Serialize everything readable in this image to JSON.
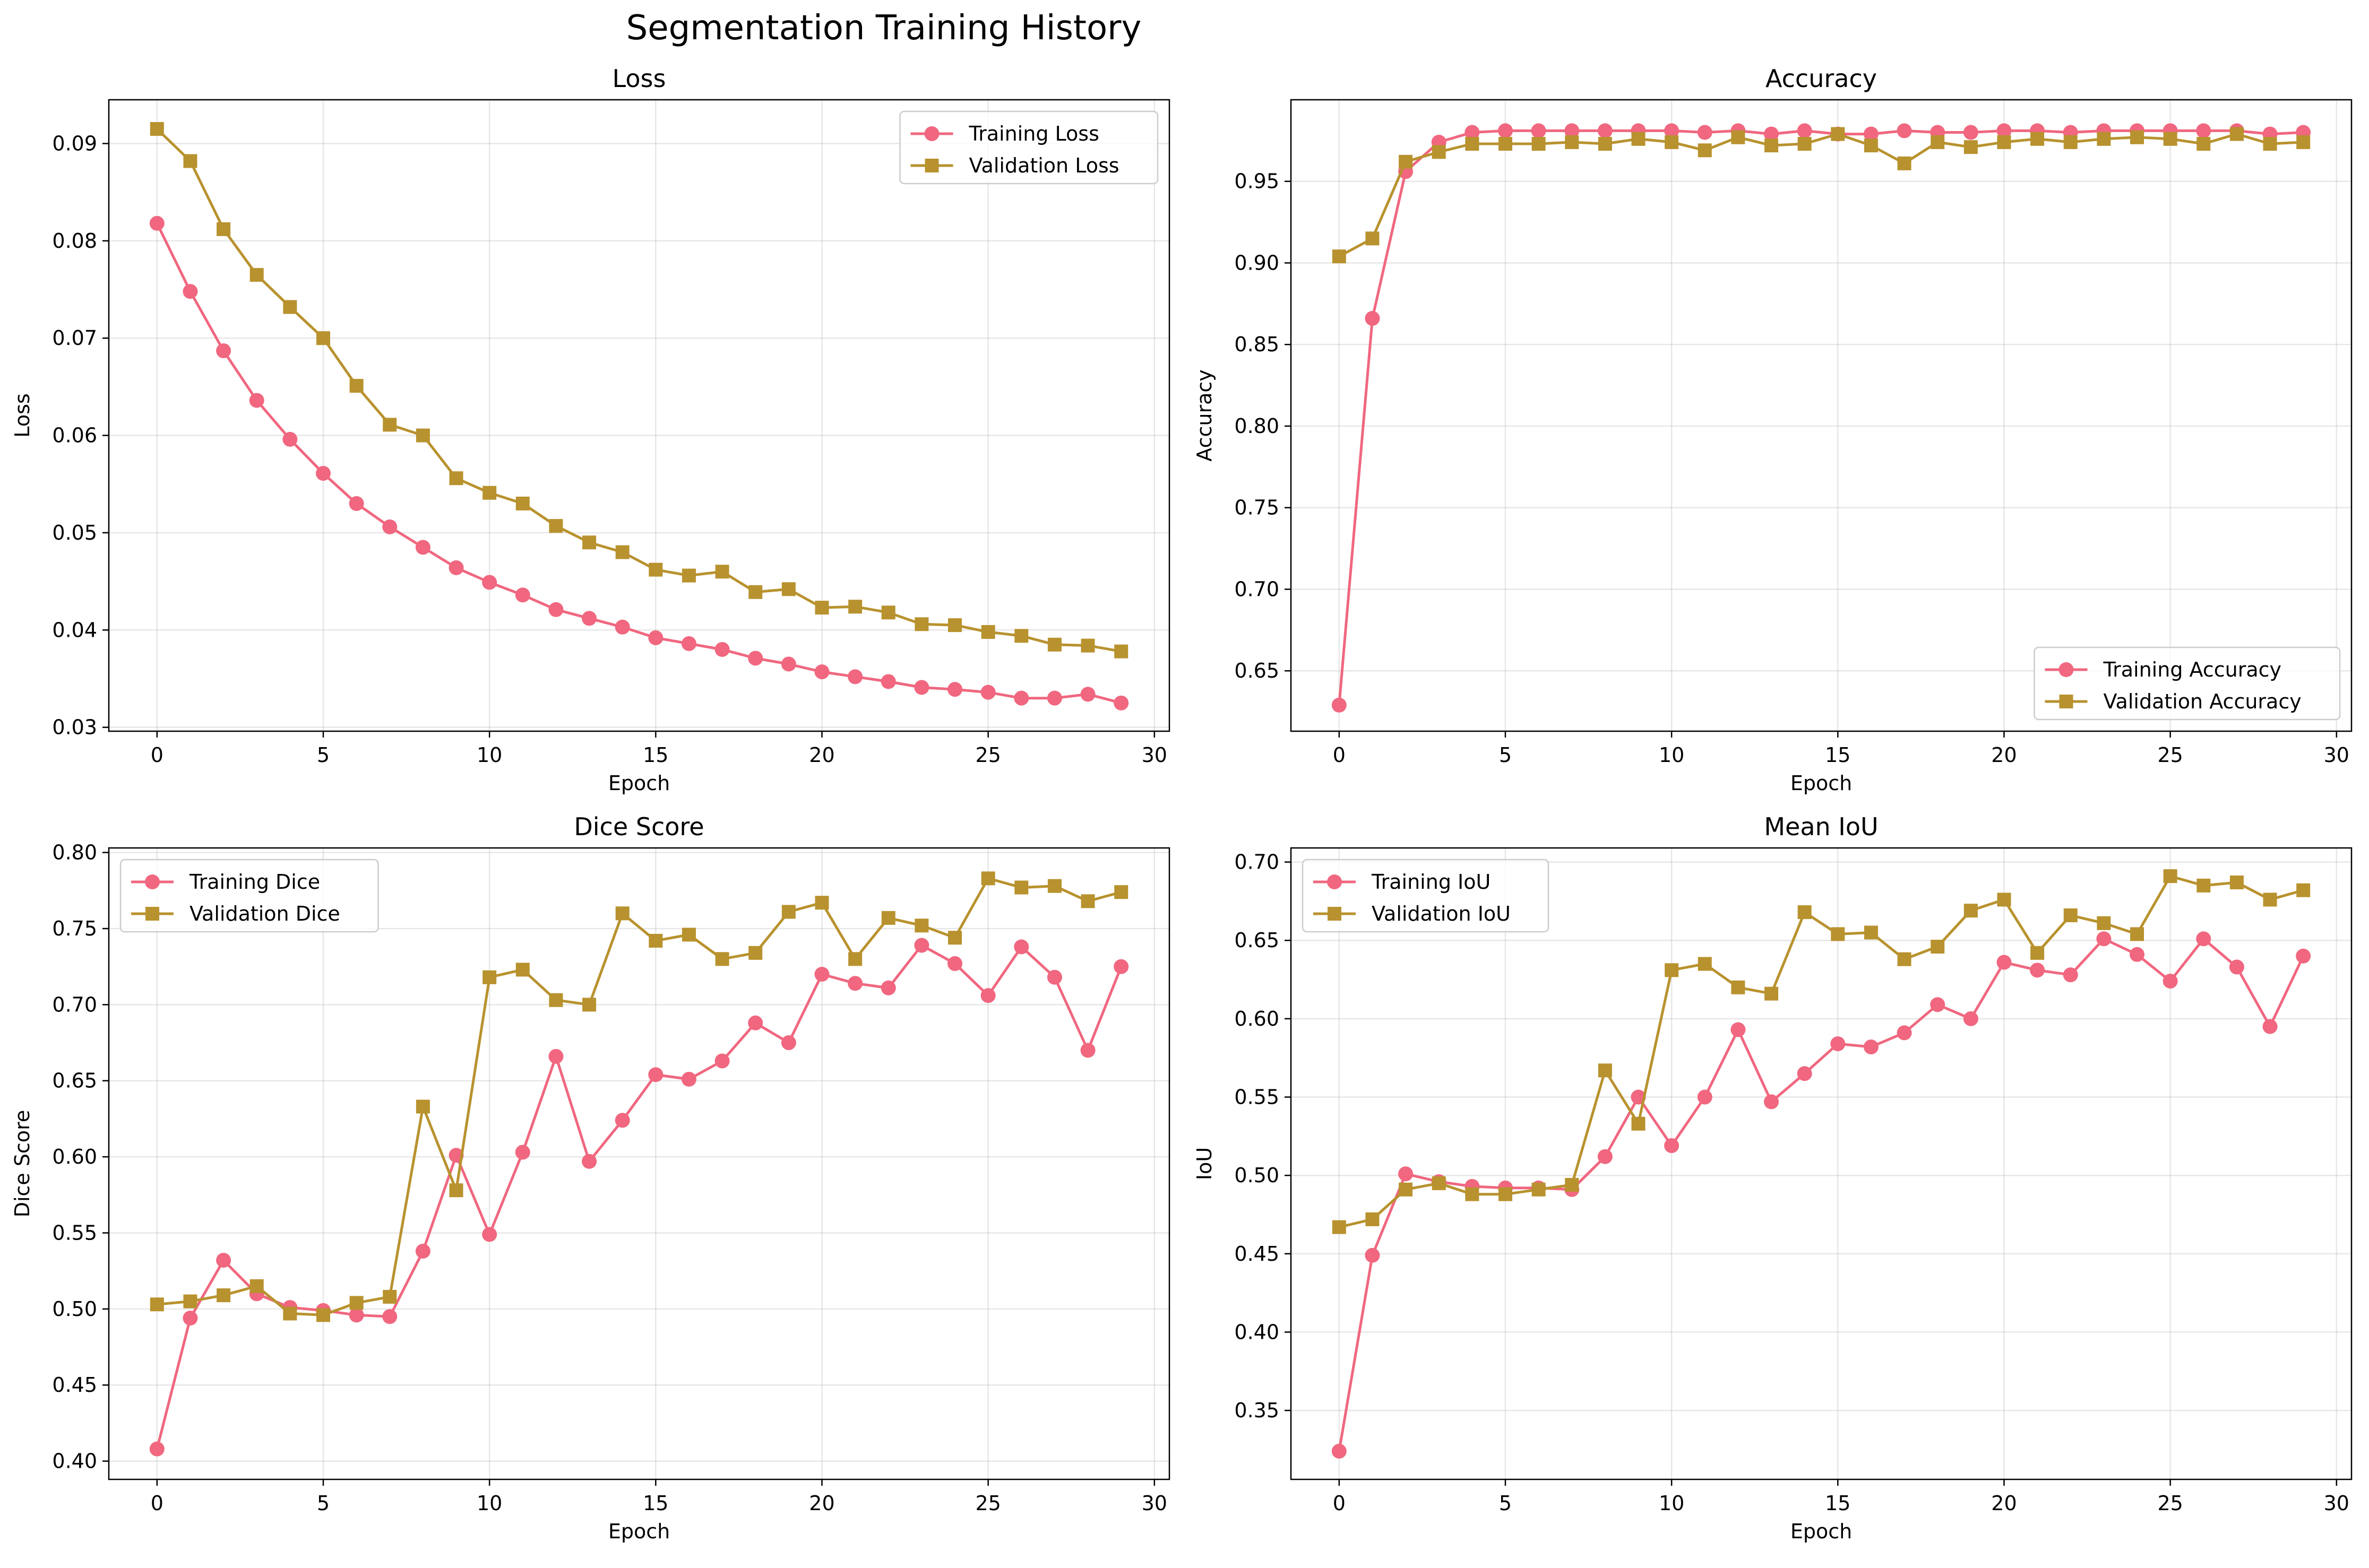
{
  "figure_title": "Segmentation Training History",
  "colors": {
    "training": "#f0677f",
    "validation": "#b8922e"
  },
  "chart_data": [
    {
      "type": "line",
      "title": "Loss",
      "xlabel": "Epoch",
      "ylabel": "Loss",
      "xlim": [
        -1.45,
        30.45
      ],
      "ylim": [
        0.0296,
        0.0945
      ],
      "xticks": [
        0,
        5,
        10,
        15,
        20,
        25,
        30
      ],
      "yticks": [
        0.03,
        0.04,
        0.05,
        0.06,
        0.07,
        0.08,
        0.09
      ],
      "tick_decimals": 2,
      "grid": true,
      "legend": "top-right",
      "x": [
        0,
        1,
        2,
        3,
        4,
        5,
        6,
        7,
        8,
        9,
        10,
        11,
        12,
        13,
        14,
        15,
        16,
        17,
        18,
        19,
        20,
        21,
        22,
        23,
        24,
        25,
        26,
        27,
        28,
        29
      ],
      "series": [
        {
          "name": "Training Loss",
          "marker": "circle",
          "color": "#f0677f",
          "values": [
            0.0818,
            0.0748,
            0.0687,
            0.0636,
            0.0596,
            0.0561,
            0.053,
            0.0506,
            0.0485,
            0.0464,
            0.0449,
            0.0436,
            0.0421,
            0.0412,
            0.0403,
            0.0392,
            0.0386,
            0.038,
            0.0371,
            0.0365,
            0.0357,
            0.0352,
            0.0347,
            0.0341,
            0.0339,
            0.0336,
            0.033,
            0.033,
            0.0334,
            0.0325
          ]
        },
        {
          "name": "Validation Loss",
          "marker": "square",
          "color": "#b8922e",
          "values": [
            0.0915,
            0.0882,
            0.0812,
            0.0765,
            0.0732,
            0.07,
            0.0651,
            0.0611,
            0.06,
            0.0556,
            0.0541,
            0.053,
            0.0507,
            0.049,
            0.048,
            0.0462,
            0.0456,
            0.046,
            0.0439,
            0.0442,
            0.0423,
            0.0424,
            0.0418,
            0.0406,
            0.0405,
            0.0398,
            0.0394,
            0.0385,
            0.0384,
            0.0378
          ]
        }
      ]
    },
    {
      "type": "line",
      "title": "Accuracy",
      "xlabel": "Epoch",
      "ylabel": "Accuracy",
      "xlim": [
        -1.45,
        30.45
      ],
      "ylim": [
        0.613,
        1.0
      ],
      "xticks": [
        0,
        5,
        10,
        15,
        20,
        25,
        30
      ],
      "yticks": [
        0.65,
        0.7,
        0.75,
        0.8,
        0.85,
        0.9,
        0.95
      ],
      "tick_decimals": 2,
      "grid": true,
      "legend": "bottom-right",
      "x": [
        0,
        1,
        2,
        3,
        4,
        5,
        6,
        7,
        8,
        9,
        10,
        11,
        12,
        13,
        14,
        15,
        16,
        17,
        18,
        19,
        20,
        21,
        22,
        23,
        24,
        25,
        26,
        27,
        28,
        29
      ],
      "series": [
        {
          "name": "Training Accuracy",
          "marker": "circle",
          "color": "#f0677f",
          "values": [
            0.629,
            0.866,
            0.956,
            0.974,
            0.98,
            0.981,
            0.981,
            0.981,
            0.981,
            0.981,
            0.981,
            0.98,
            0.981,
            0.979,
            0.981,
            0.979,
            0.979,
            0.981,
            0.98,
            0.98,
            0.981,
            0.981,
            0.98,
            0.981,
            0.981,
            0.981,
            0.981,
            0.981,
            0.979,
            0.98
          ]
        },
        {
          "name": "Validation Accuracy",
          "marker": "square",
          "color": "#b8922e",
          "values": [
            0.904,
            0.915,
            0.962,
            0.968,
            0.973,
            0.973,
            0.973,
            0.974,
            0.973,
            0.976,
            0.974,
            0.969,
            0.977,
            0.972,
            0.973,
            0.979,
            0.972,
            0.961,
            0.974,
            0.971,
            0.974,
            0.976,
            0.974,
            0.976,
            0.977,
            0.976,
            0.973,
            0.979,
            0.973,
            0.974
          ]
        }
      ]
    },
    {
      "type": "line",
      "title": "Dice Score",
      "xlabel": "Epoch",
      "ylabel": "Dice Score",
      "xlim": [
        -1.45,
        30.45
      ],
      "ylim": [
        0.388,
        0.803
      ],
      "xticks": [
        0,
        5,
        10,
        15,
        20,
        25,
        30
      ],
      "yticks": [
        0.4,
        0.45,
        0.5,
        0.55,
        0.6,
        0.65,
        0.7,
        0.75,
        0.8
      ],
      "tick_decimals": 2,
      "grid": true,
      "legend": "top-left",
      "x": [
        0,
        1,
        2,
        3,
        4,
        5,
        6,
        7,
        8,
        9,
        10,
        11,
        12,
        13,
        14,
        15,
        16,
        17,
        18,
        19,
        20,
        21,
        22,
        23,
        24,
        25,
        26,
        27,
        28,
        29
      ],
      "series": [
        {
          "name": "Training Dice",
          "marker": "circle",
          "color": "#f0677f",
          "values": [
            0.408,
            0.494,
            0.532,
            0.51,
            0.501,
            0.499,
            0.496,
            0.495,
            0.538,
            0.601,
            0.549,
            0.603,
            0.666,
            0.597,
            0.624,
            0.654,
            0.651,
            0.663,
            0.688,
            0.675,
            0.72,
            0.714,
            0.711,
            0.739,
            0.727,
            0.706,
            0.738,
            0.718,
            0.67,
            0.725
          ]
        },
        {
          "name": "Validation Dice",
          "marker": "square",
          "color": "#b8922e",
          "values": [
            0.503,
            0.505,
            0.509,
            0.515,
            0.497,
            0.496,
            0.504,
            0.508,
            0.633,
            0.578,
            0.718,
            0.723,
            0.703,
            0.7,
            0.76,
            0.742,
            0.746,
            0.73,
            0.734,
            0.761,
            0.767,
            0.73,
            0.757,
            0.752,
            0.744,
            0.783,
            0.777,
            0.778,
            0.768,
            0.774
          ]
        }
      ]
    },
    {
      "type": "line",
      "title": "Mean IoU",
      "xlabel": "Epoch",
      "ylabel": "IoU",
      "xlim": [
        -1.45,
        30.45
      ],
      "ylim": [
        0.306,
        0.709
      ],
      "xticks": [
        0,
        5,
        10,
        15,
        20,
        25,
        30
      ],
      "yticks": [
        0.35,
        0.4,
        0.45,
        0.5,
        0.55,
        0.6,
        0.65,
        0.7
      ],
      "tick_decimals": 2,
      "grid": true,
      "legend": "top-left",
      "x": [
        0,
        1,
        2,
        3,
        4,
        5,
        6,
        7,
        8,
        9,
        10,
        11,
        12,
        13,
        14,
        15,
        16,
        17,
        18,
        19,
        20,
        21,
        22,
        23,
        24,
        25,
        26,
        27,
        28,
        29
      ],
      "series": [
        {
          "name": "Training IoU",
          "marker": "circle",
          "color": "#f0677f",
          "values": [
            0.324,
            0.449,
            0.501,
            0.496,
            0.493,
            0.492,
            0.492,
            0.491,
            0.512,
            0.55,
            0.519,
            0.55,
            0.593,
            0.547,
            0.565,
            0.584,
            0.582,
            0.591,
            0.609,
            0.6,
            0.636,
            0.631,
            0.628,
            0.651,
            0.641,
            0.624,
            0.651,
            0.633,
            0.595,
            0.64
          ]
        },
        {
          "name": "Validation IoU",
          "marker": "square",
          "color": "#b8922e",
          "values": [
            0.467,
            0.472,
            0.491,
            0.495,
            0.488,
            0.488,
            0.491,
            0.494,
            0.567,
            0.533,
            0.631,
            0.635,
            0.62,
            0.616,
            0.668,
            0.654,
            0.655,
            0.638,
            0.646,
            0.669,
            0.676,
            0.642,
            0.666,
            0.661,
            0.654,
            0.691,
            0.685,
            0.687,
            0.676,
            0.682
          ]
        }
      ]
    }
  ]
}
